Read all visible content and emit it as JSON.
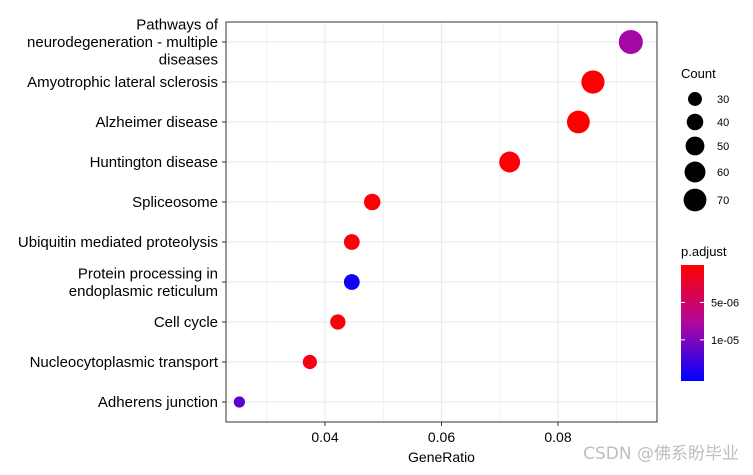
{
  "chart_data": {
    "type": "scatter",
    "title": "",
    "xlabel": "GeneRatio",
    "ylabel": "",
    "xlim": [
      0.023,
      0.097
    ],
    "xticks": [
      0.04,
      0.06,
      0.08
    ],
    "xtick_labels": [
      "0.04",
      "0.06",
      "0.08"
    ],
    "grid": true,
    "categories": [
      "Pathways of\nneurodegeneration - multiple\ndiseases",
      "Amyotrophic lateral sclerosis",
      "Alzheimer disease",
      "Huntington disease",
      "Spliceosome",
      "Ubiquitin mediated proteolysis",
      "Protein processing in\nendoplasmic reticulum",
      "Cell cycle",
      "Nucleocytoplasmic transport",
      "Adherens junction"
    ],
    "points": [
      {
        "category": "Pathways of\nneurodegeneration - multiple\ndiseases",
        "gene_ratio": 0.0925,
        "count": 77,
        "p_adjust": 9e-06
      },
      {
        "category": "Amyotrophic lateral sclerosis",
        "gene_ratio": 0.086,
        "count": 72,
        "p_adjust": 1e-07
      },
      {
        "category": "Alzheimer disease",
        "gene_ratio": 0.0835,
        "count": 70,
        "p_adjust": 1e-07
      },
      {
        "category": "Huntington disease",
        "gene_ratio": 0.0717,
        "count": 60,
        "p_adjust": 2e-07
      },
      {
        "category": "Spliceosome",
        "gene_ratio": 0.0481,
        "count": 40,
        "p_adjust": 3e-07
      },
      {
        "category": "Ubiquitin mediated proteolysis",
        "gene_ratio": 0.0446,
        "count": 37,
        "p_adjust": 4e-07
      },
      {
        "category": "Protein processing in\nendoplasmic reticulum",
        "gene_ratio": 0.0446,
        "count": 37,
        "p_adjust": 1.48e-05
      },
      {
        "category": "Cell cycle",
        "gene_ratio": 0.0422,
        "count": 35,
        "p_adjust": 5e-07
      },
      {
        "category": "Nucleocytoplasmic transport",
        "gene_ratio": 0.0374,
        "count": 31,
        "p_adjust": 1e-06
      },
      {
        "category": "Adherens junction",
        "gene_ratio": 0.0253,
        "count": 21,
        "p_adjust": 1.2e-05
      }
    ],
    "legend_size": {
      "title": "Count",
      "values": [
        30,
        40,
        50,
        60,
        70
      ],
      "labels": [
        "30",
        "40",
        "50",
        "60",
        "70"
      ]
    },
    "legend_color": {
      "title": "p.adjust",
      "domain": [
        0.0,
        1.55e-05
      ],
      "ticks": [
        5e-06,
        1e-05
      ],
      "tick_labels": [
        "5e-06",
        "1e-05"
      ],
      "low_color": "#FF0000",
      "high_color": "#0000FF"
    },
    "legend_position": "right"
  },
  "colors": {
    "panel_grid": "#EBEBEB",
    "axis_border": "#333333",
    "text": "#000000"
  },
  "watermark": "CSDN @佛系盼毕业"
}
